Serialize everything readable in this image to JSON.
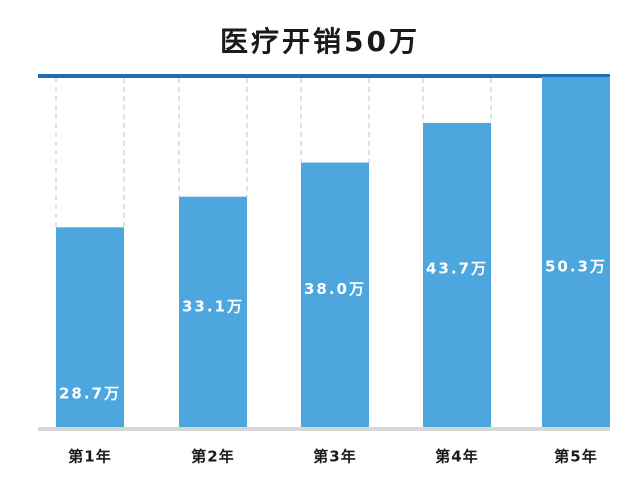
{
  "chart_data": {
    "type": "bar",
    "title": "医疗开销50万",
    "categories": [
      "第1年",
      "第2年",
      "第3年",
      "第4年",
      "第5年"
    ],
    "values": [
      28.7,
      33.1,
      38.0,
      43.7,
      50.3
    ],
    "unit": "万",
    "ylim": [
      0,
      50.3
    ],
    "grid": false,
    "legend": "none",
    "colors": {
      "bar": "#4da6de",
      "top_rule": "#1f6fb4",
      "baseline": "#d6d6d6",
      "guide": "#c4c4c4",
      "value_label": "#ffffff",
      "category_label": "#1a1a1a"
    }
  }
}
